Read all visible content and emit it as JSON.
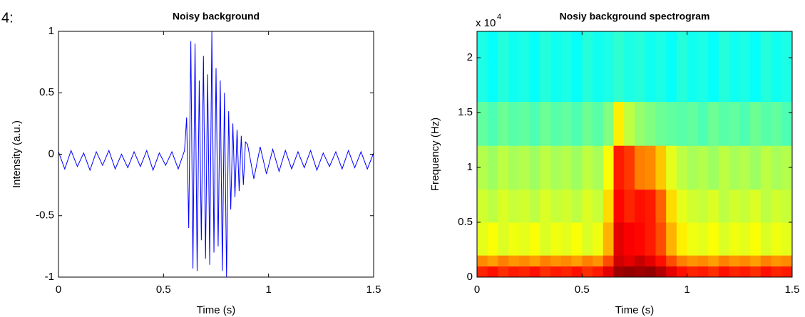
{
  "figure_label": "4:",
  "chart_data": [
    {
      "type": "line",
      "title": "Noisy background",
      "xlabel": "Time (s)",
      "ylabel": "Intensity (a.u.)",
      "color": "#0000ff",
      "x": [
        0,
        0.03,
        0.06,
        0.09,
        0.12,
        0.15,
        0.18,
        0.21,
        0.24,
        0.27,
        0.3,
        0.33,
        0.36,
        0.39,
        0.42,
        0.45,
        0.48,
        0.51,
        0.54,
        0.57,
        0.6,
        0.61,
        0.62,
        0.63,
        0.64,
        0.65,
        0.66,
        0.67,
        0.68,
        0.69,
        0.7,
        0.71,
        0.72,
        0.73,
        0.74,
        0.75,
        0.76,
        0.77,
        0.78,
        0.79,
        0.8,
        0.81,
        0.82,
        0.83,
        0.84,
        0.85,
        0.86,
        0.87,
        0.88,
        0.89,
        0.9,
        0.93,
        0.96,
        0.99,
        1.02,
        1.05,
        1.08,
        1.11,
        1.14,
        1.17,
        1.2,
        1.23,
        1.26,
        1.29,
        1.32,
        1.35,
        1.38,
        1.41,
        1.44,
        1.47,
        1.5
      ],
      "values": [
        0.02,
        -0.12,
        0.03,
        -0.1,
        0.01,
        -0.13,
        0.02,
        -0.09,
        0.03,
        -0.12,
        0.0,
        -0.11,
        0.02,
        -0.1,
        0.03,
        -0.13,
        0.01,
        -0.09,
        0.02,
        -0.12,
        0.03,
        0.3,
        -0.6,
        0.92,
        -0.93,
        0.9,
        -0.95,
        0.6,
        -0.7,
        0.8,
        -0.85,
        0.65,
        -0.9,
        1.0,
        -0.8,
        0.7,
        -0.75,
        0.6,
        -0.95,
        0.5,
        -1.0,
        0.35,
        -0.45,
        0.25,
        -0.35,
        0.2,
        -0.3,
        0.15,
        -0.25,
        0.1,
        0.08,
        -0.2,
        0.06,
        -0.16,
        0.04,
        -0.14,
        0.03,
        -0.12,
        0.02,
        -0.11,
        0.03,
        -0.13,
        0.01,
        -0.1,
        0.02,
        -0.12,
        0.03,
        -0.11,
        0.02,
        -0.12,
        0.01
      ],
      "xlim": [
        0,
        1.5
      ],
      "ylim": [
        -1,
        1
      ],
      "xticks": [
        0,
        0.5,
        1,
        1.5
      ],
      "yticks": [
        -1,
        -0.5,
        0,
        0.5,
        1
      ]
    },
    {
      "type": "heatmap",
      "title": "Nosiy background spectrogram",
      "xlabel": "Time (s)",
      "ylabel": "Frequency (Hz)",
      "y_multiplier": {
        "base": "x 10",
        "exponent": "4"
      },
      "colormap": "jet",
      "clim": [
        0,
        1
      ],
      "x_edges": [
        0,
        0.05,
        0.1,
        0.15,
        0.2,
        0.25,
        0.3,
        0.35,
        0.4,
        0.45,
        0.5,
        0.55,
        0.6,
        0.65,
        0.7,
        0.75,
        0.8,
        0.85,
        0.9,
        0.95,
        1.0,
        1.05,
        1.1,
        1.15,
        1.2,
        1.25,
        1.3,
        1.35,
        1.4,
        1.45,
        1.5
      ],
      "y_edges": [
        0,
        1000,
        2000,
        5000,
        8000,
        12000,
        16000,
        22400
      ],
      "values": [
        [
          0.84,
          0.86,
          0.83,
          0.85,
          0.84,
          0.86,
          0.83,
          0.85,
          0.84,
          0.86,
          0.83,
          0.85,
          0.9,
          0.97,
          0.98,
          0.97,
          0.98,
          0.95,
          0.9,
          0.86,
          0.84,
          0.85,
          0.83,
          0.86,
          0.84,
          0.85,
          0.83,
          0.86,
          0.84,
          0.85
        ],
        [
          0.74,
          0.72,
          0.75,
          0.73,
          0.74,
          0.72,
          0.75,
          0.73,
          0.74,
          0.72,
          0.75,
          0.73,
          0.8,
          0.92,
          0.9,
          0.93,
          0.9,
          0.86,
          0.8,
          0.75,
          0.73,
          0.74,
          0.72,
          0.75,
          0.73,
          0.74,
          0.72,
          0.75,
          0.73,
          0.74
        ],
        [
          0.6,
          0.62,
          0.59,
          0.61,
          0.6,
          0.62,
          0.59,
          0.61,
          0.6,
          0.62,
          0.59,
          0.61,
          0.7,
          0.9,
          0.88,
          0.87,
          0.85,
          0.8,
          0.7,
          0.64,
          0.61,
          0.6,
          0.62,
          0.59,
          0.61,
          0.6,
          0.62,
          0.59,
          0.61,
          0.6
        ],
        [
          0.58,
          0.56,
          0.59,
          0.57,
          0.58,
          0.56,
          0.59,
          0.57,
          0.58,
          0.56,
          0.59,
          0.57,
          0.66,
          0.87,
          0.84,
          0.86,
          0.85,
          0.78,
          0.66,
          0.6,
          0.58,
          0.57,
          0.59,
          0.56,
          0.58,
          0.57,
          0.59,
          0.56,
          0.58,
          0.57
        ],
        [
          0.55,
          0.53,
          0.56,
          0.54,
          0.55,
          0.53,
          0.56,
          0.54,
          0.55,
          0.53,
          0.56,
          0.54,
          0.62,
          0.85,
          0.82,
          0.75,
          0.74,
          0.68,
          0.6,
          0.56,
          0.54,
          0.55,
          0.53,
          0.56,
          0.54,
          0.55,
          0.53,
          0.56,
          0.54,
          0.55
        ],
        [
          0.47,
          0.45,
          0.48,
          0.46,
          0.47,
          0.45,
          0.48,
          0.46,
          0.47,
          0.45,
          0.48,
          0.46,
          0.5,
          0.64,
          0.56,
          0.52,
          0.5,
          0.48,
          0.47,
          0.46,
          0.47,
          0.45,
          0.48,
          0.46,
          0.47,
          0.45,
          0.48,
          0.46,
          0.47,
          0.45
        ],
        [
          0.4,
          0.38,
          0.41,
          0.39,
          0.4,
          0.38,
          0.41,
          0.39,
          0.4,
          0.38,
          0.41,
          0.39,
          0.4,
          0.42,
          0.4,
          0.41,
          0.39,
          0.4,
          0.38,
          0.41,
          0.39,
          0.4,
          0.38,
          0.41,
          0.39,
          0.4,
          0.38,
          0.41,
          0.39,
          0.4
        ]
      ],
      "xlim": [
        0,
        1.5
      ],
      "ylim": [
        0,
        22400
      ],
      "xticks": [
        0,
        0.5,
        1,
        1.5
      ],
      "yticks": [
        {
          "value": 0,
          "label": "0"
        },
        {
          "value": 5000,
          "label": "0.5"
        },
        {
          "value": 10000,
          "label": "1"
        },
        {
          "value": 15000,
          "label": "1.5"
        },
        {
          "value": 20000,
          "label": "2"
        }
      ]
    }
  ]
}
